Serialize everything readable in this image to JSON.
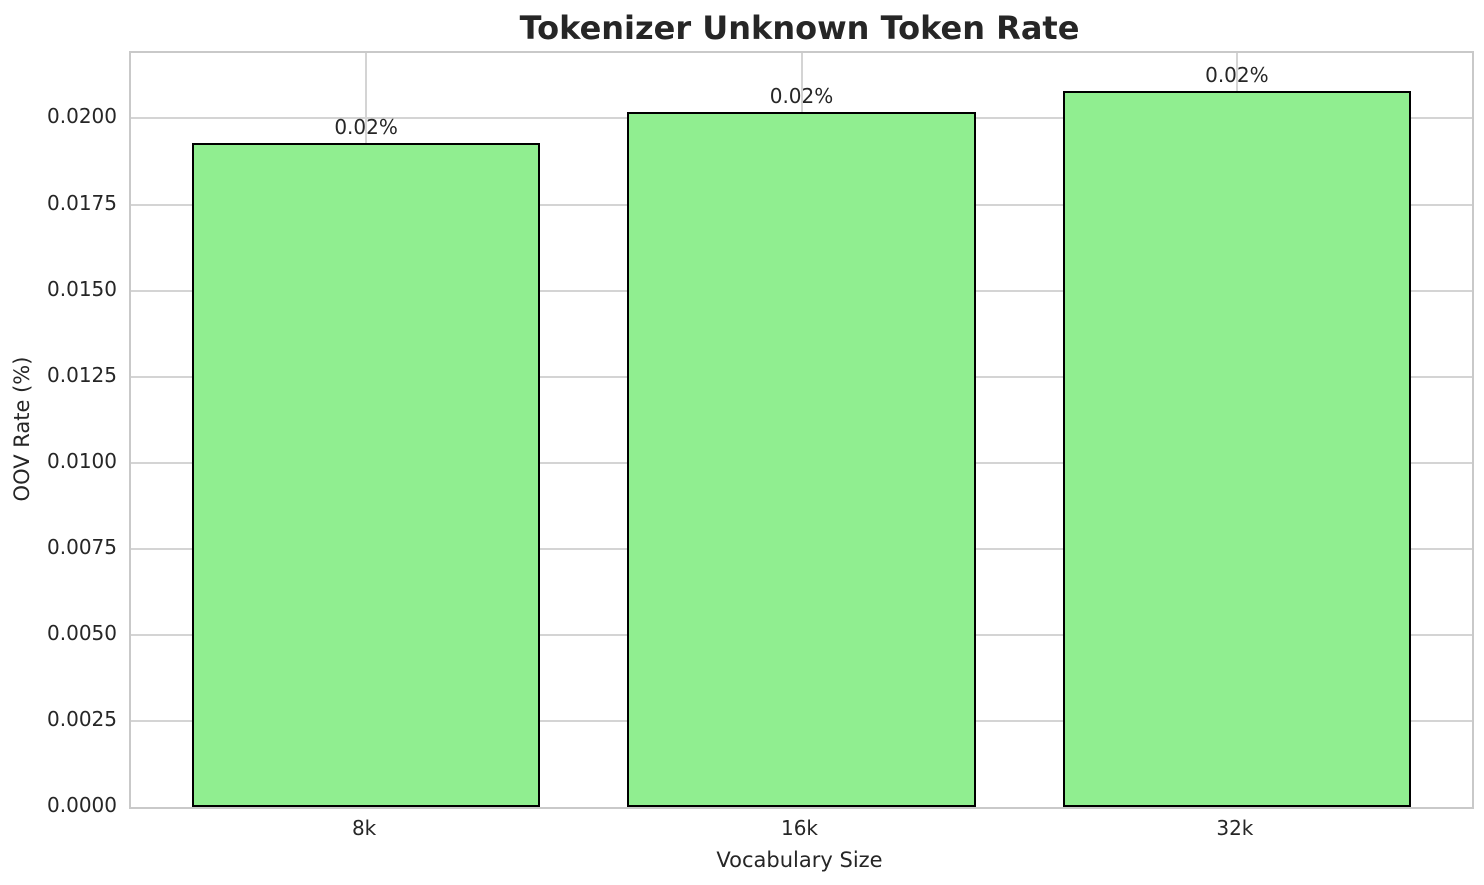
{
  "chart_data": {
    "type": "bar",
    "title": "Tokenizer Unknown Token Rate",
    "xlabel": "Vocabulary Size",
    "ylabel": "OOV Rate (%)",
    "categories": [
      "8k",
      "16k",
      "32k"
    ],
    "values": [
      0.0193,
      0.0202,
      0.0208
    ],
    "bar_value_labels": [
      "0.02%",
      "0.02%",
      "0.02%"
    ],
    "ylim": [
      0,
      0.0219
    ],
    "ytick_values": [
      0.0,
      0.0025,
      0.005,
      0.0075,
      0.01,
      0.0125,
      0.015,
      0.0175,
      0.02
    ],
    "ytick_labels": [
      "0.0000",
      "0.0025",
      "0.0050",
      "0.0075",
      "0.0100",
      "0.0125",
      "0.0150",
      "0.0175",
      "0.0200"
    ],
    "grid": true,
    "legend_position": "none",
    "bar_width_fraction": 0.8,
    "bar_color": "#90EE90",
    "bar_edge_color": "#000000"
  },
  "style": {
    "background_color": "#ffffff",
    "grid_color": "#d4d4d4",
    "spine_color": "#c9c9c9",
    "text_color": "#262626"
  }
}
